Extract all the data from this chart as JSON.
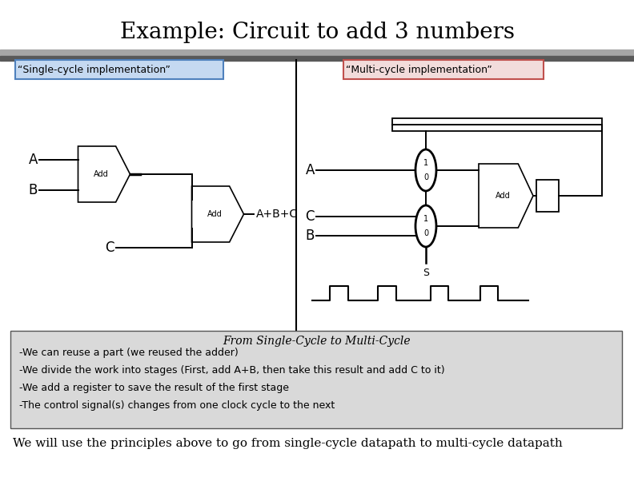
{
  "title": "Example: Circuit to add 3 numbers",
  "title_fontsize": 20,
  "single_label": "“Single-cycle implementation”",
  "multi_label": "“Multi-cycle implementation”",
  "single_bg": "#c5d9f1",
  "multi_bg": "#f2dcdb",
  "single_border": "#4f81bd",
  "multi_border": "#c0504d",
  "bottom_box_bg": "#d9d9d9",
  "bottom_title": "From Single-Cycle to Multi-Cycle",
  "bottom_lines": [
    "-We can reuse a part (we reused the adder)",
    "-We divide the work into stages (First, add A+B, then take this result and add C to it)",
    "-We add a register to save the result of the first stage",
    "-The control signal(s) changes from one clock cycle to the next"
  ],
  "footer_text": "We will use the principles above to go from single-cycle datapath to multi-cycle datapath",
  "header_bar_top": "#a6a6a6",
  "header_bar_bot": "#595959",
  "bg_color": "#ffffff"
}
